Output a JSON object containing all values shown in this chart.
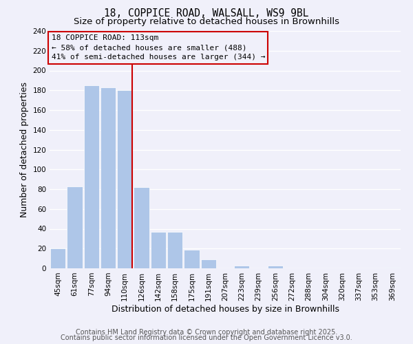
{
  "title": "18, COPPICE ROAD, WALSALL, WS9 9BL",
  "subtitle": "Size of property relative to detached houses in Brownhills",
  "xlabel": "Distribution of detached houses by size in Brownhills",
  "ylabel": "Number of detached properties",
  "bar_labels": [
    "45sqm",
    "61sqm",
    "77sqm",
    "94sqm",
    "110sqm",
    "126sqm",
    "142sqm",
    "158sqm",
    "175sqm",
    "191sqm",
    "207sqm",
    "223sqm",
    "239sqm",
    "256sqm",
    "272sqm",
    "288sqm",
    "304sqm",
    "320sqm",
    "337sqm",
    "353sqm",
    "369sqm"
  ],
  "bar_values": [
    20,
    83,
    185,
    183,
    180,
    82,
    37,
    37,
    19,
    9,
    0,
    3,
    0,
    3,
    0,
    0,
    0,
    0,
    0,
    0,
    1
  ],
  "bar_color": "#aec6e8",
  "highlight_index": 4,
  "highlight_color": "#c8d8f0",
  "vline_color": "#cc0000",
  "ylim": [
    0,
    240
  ],
  "yticks": [
    0,
    20,
    40,
    60,
    80,
    100,
    120,
    140,
    160,
    180,
    200,
    220,
    240
  ],
  "annotation_title": "18 COPPICE ROAD: 113sqm",
  "annotation_line1": "← 58% of detached houses are smaller (488)",
  "annotation_line2": "41% of semi-detached houses are larger (344) →",
  "footer1": "Contains HM Land Registry data © Crown copyright and database right 2025.",
  "footer2": "Contains public sector information licensed under the Open Government Licence v3.0.",
  "bg_color": "#f0f0fa",
  "grid_color": "#ffffff",
  "title_fontsize": 10.5,
  "subtitle_fontsize": 9.5,
  "axis_label_fontsize": 9,
  "tick_fontsize": 7.5,
  "annotation_fontsize": 8,
  "footer_fontsize": 7
}
